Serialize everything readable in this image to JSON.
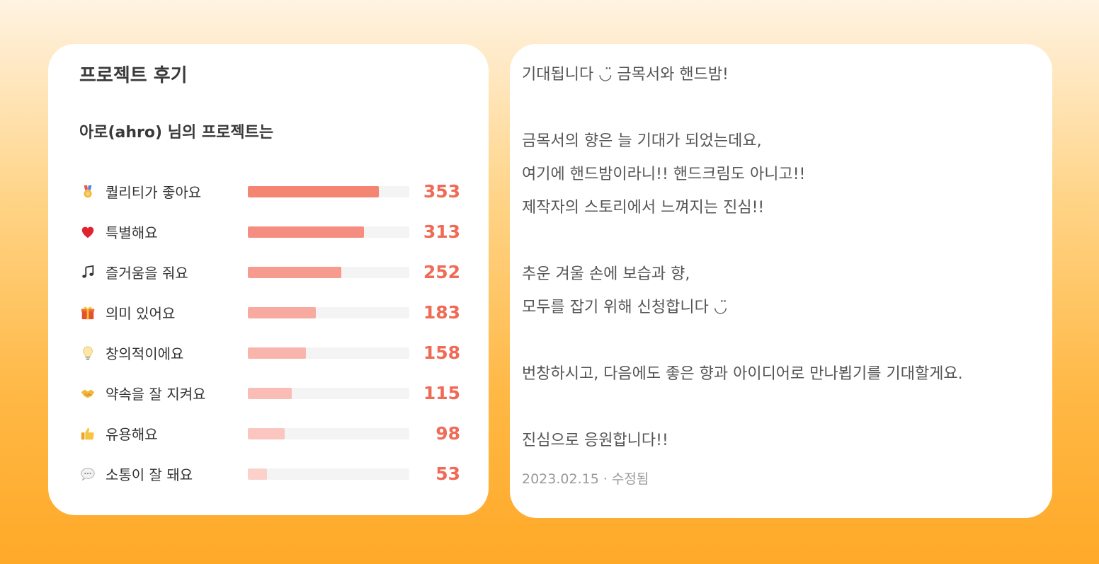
{
  "left_card": {
    "title": "프로젝트 후기",
    "subtitle": "아로(ahro) 님의 프로젝트는",
    "ratings": [
      {
        "icon": "medal-icon",
        "label": "퀄리티가 좋아요",
        "count": "353",
        "fraction": 0.81,
        "color": "#f48572"
      },
      {
        "icon": "heart-icon",
        "label": "특별해요",
        "count": "313",
        "fraction": 0.72,
        "color": "#f58e80"
      },
      {
        "icon": "music-note-icon",
        "label": "즐거움을 줘요",
        "count": "252",
        "fraction": 0.58,
        "color": "#f79b8f"
      },
      {
        "icon": "gift-icon",
        "label": "의미 있어요",
        "count": "183",
        "fraction": 0.42,
        "color": "#f8aaa0"
      },
      {
        "icon": "lightbulb-icon",
        "label": "창의적이에요",
        "count": "158",
        "fraction": 0.36,
        "color": "#f9b4ab"
      },
      {
        "icon": "handshake-icon",
        "label": "약속을 잘 지켜요",
        "count": "115",
        "fraction": 0.27,
        "color": "#fabdb6"
      },
      {
        "icon": "thumbs-up-icon",
        "label": "유용해요",
        "count": "98",
        "fraction": 0.23,
        "color": "#fbc6c0"
      },
      {
        "icon": "speech-bubble-icon",
        "label": "소통이 잘 돼요",
        "count": "53",
        "fraction": 0.12,
        "color": "#fcd0cb"
      }
    ]
  },
  "review": {
    "lines": [
      "기대됩니다 ◡̈ 금목서와 핸드밤!",
      "",
      "금목서의 향은 늘 기대가 되었는데요,",
      "여기에 핸드밤이라니!! 핸드크림도 아니고!!",
      "제작자의 스토리에서 느껴지는 진심!!",
      "",
      "추운 겨울 손에 보습과 향,",
      "모두를 잡기 위해 신청합니다 ◡̈",
      "",
      "번창하시고, 다음에도 좋은 향과 아이디어로 만나뵙기를 기대할게요.",
      "",
      "진심으로 응원합니다!!"
    ],
    "date": "2023.02.15 · 수정됨"
  }
}
